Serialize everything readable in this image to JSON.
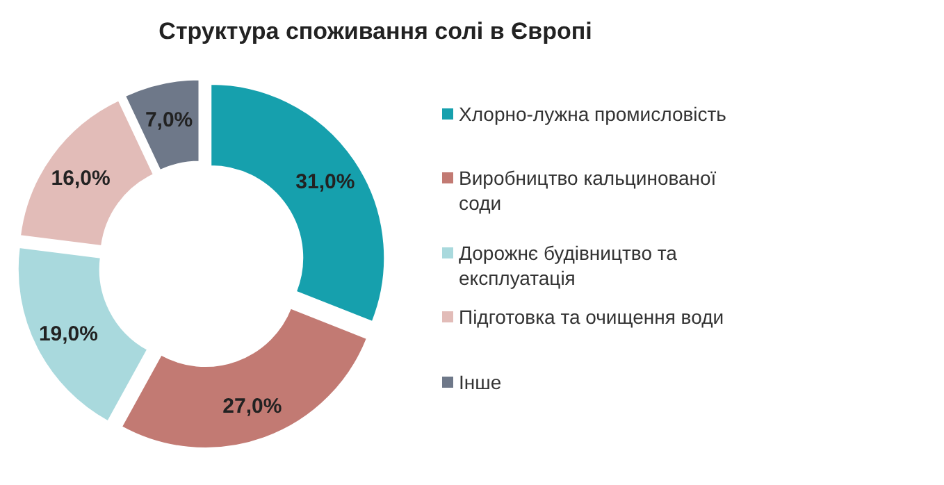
{
  "chart_data": {
    "type": "donut",
    "title": "Структура споживання солі в Європі",
    "categories": [
      "Хлорно-лужна промисловість",
      "Виробництво кальцинованої соди",
      "Дорожнє будівництво та експлуатація",
      "Підготовка та очищення води",
      "Інше"
    ],
    "values": [
      31,
      27,
      19,
      16,
      7
    ],
    "value_labels": [
      "31,0%",
      "27,0%",
      "19,0%",
      "16,0%",
      "7,0%"
    ],
    "colors": [
      "#16a0ad",
      "#c27a73",
      "#a9d9dd",
      "#e2bcb8",
      "#6e7889"
    ],
    "legend": "right"
  }
}
